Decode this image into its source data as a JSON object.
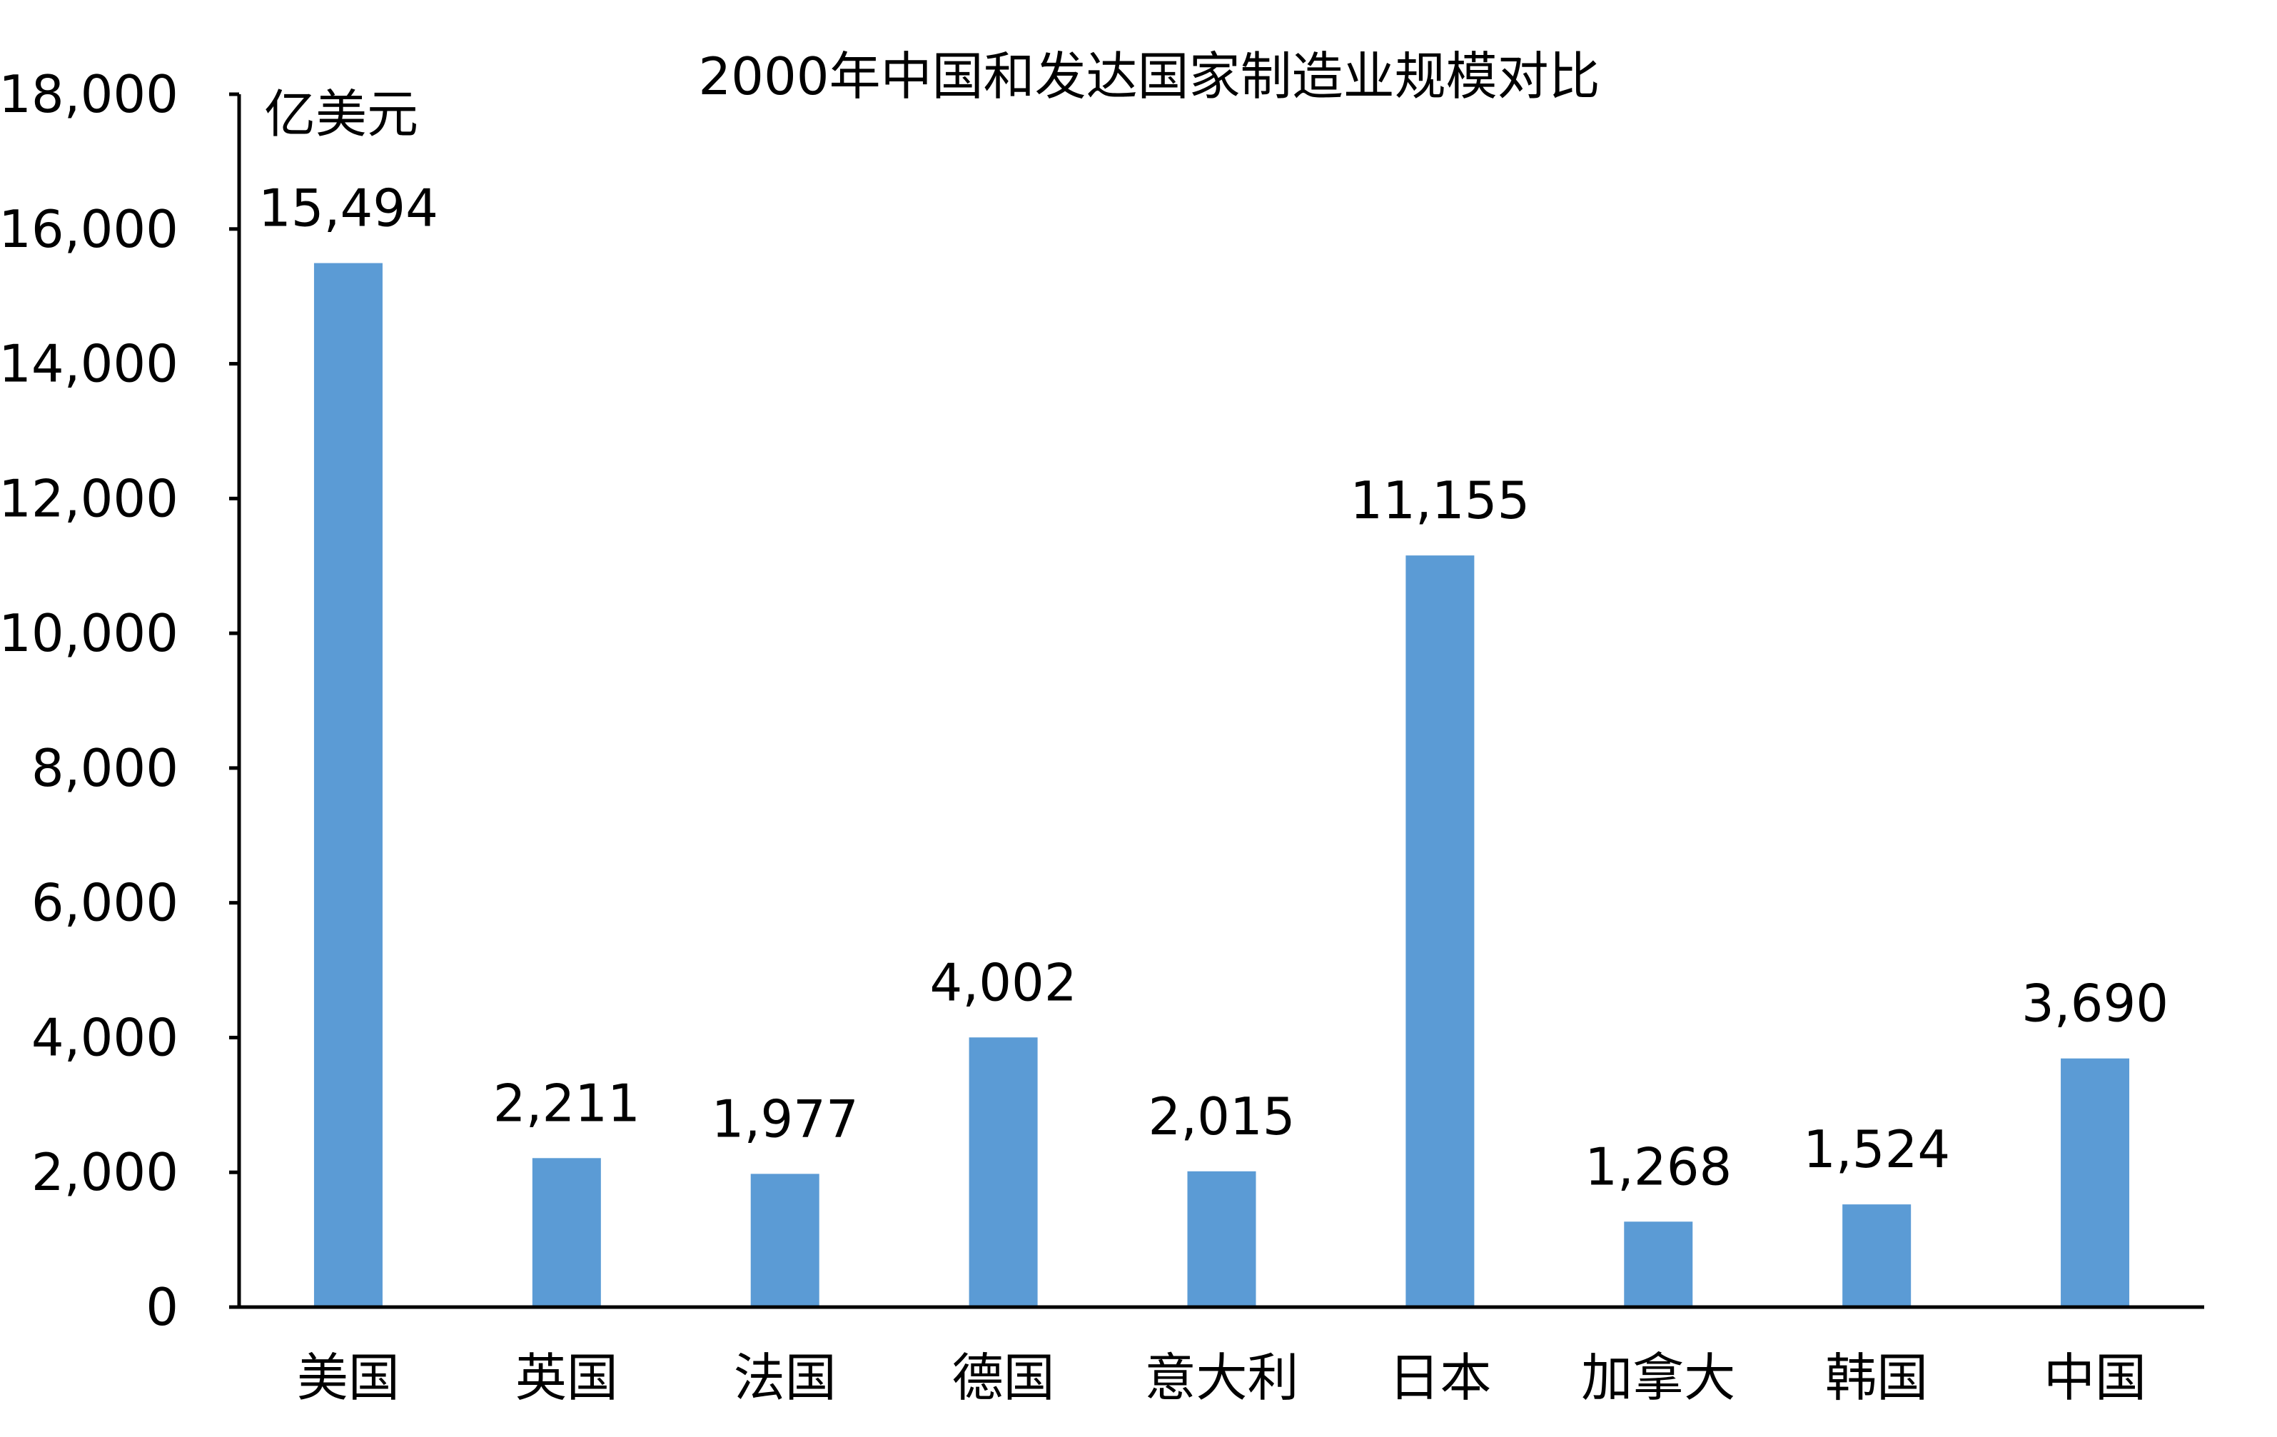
{
  "chart_data": {
    "type": "bar",
    "title": "2000年中国和发达国家制造业规模对比",
    "unit_label": "亿美元",
    "categories": [
      "美国",
      "英国",
      "法国",
      "德国",
      "意大利",
      "日本",
      "加拿大",
      "韩国",
      "中国"
    ],
    "values": [
      15494,
      2211,
      1977,
      4002,
      2015,
      11155,
      1268,
      1524,
      3690
    ],
    "value_labels": [
      "15,494",
      "2,211",
      "1,977",
      "4,002",
      "2,015",
      "11,155",
      "1,268",
      "1,524",
      "3,690"
    ],
    "ylim": [
      0,
      18000
    ],
    "yticks": [
      0,
      2000,
      4000,
      6000,
      8000,
      10000,
      12000,
      14000,
      16000,
      18000
    ],
    "ytick_labels": [
      "0",
      "2,000",
      "4,000",
      "6,000",
      "8,000",
      "10,000",
      "12,000",
      "14,000",
      "16,000",
      "18,000"
    ],
    "xlabel": "",
    "ylabel": "",
    "grid": false,
    "legend": "none",
    "colors": {
      "bar": "#5B9BD5",
      "axis": "#000000",
      "text": "#000000"
    }
  }
}
